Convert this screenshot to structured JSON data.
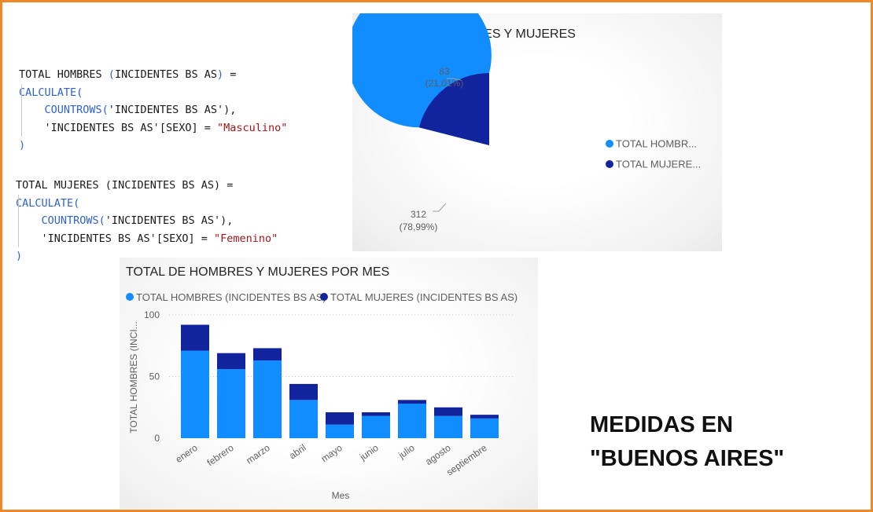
{
  "code_blocks": [
    {
      "lines": [
        [
          {
            "t": "TOTAL HOMBRES ",
            "c": ""
          },
          {
            "t": "(",
            "c": "par"
          },
          {
            "t": "INCIDENTES BS AS",
            "c": ""
          },
          {
            "t": ")",
            "c": "par"
          },
          {
            "t": " =",
            "c": ""
          }
        ],
        [
          {
            "t": "CALCULATE(",
            "c": "fn"
          }
        ],
        [
          {
            "t": "    ",
            "c": ""
          },
          {
            "t": "COUNTROWS(",
            "c": "fn"
          },
          {
            "t": "'INCIDENTES BS AS'",
            "c": ""
          },
          {
            "t": "),",
            "c": ""
          }
        ],
        [
          {
            "t": "    'INCIDENTES BS AS'",
            "c": ""
          },
          {
            "t": "[SEXO]",
            "c": ""
          },
          {
            "t": " = ",
            "c": ""
          },
          {
            "t": "\"Masculino\"",
            "c": "str"
          }
        ],
        [
          {
            "t": ")",
            "c": "fn"
          }
        ]
      ]
    },
    {
      "lines": [
        [
          {
            "t": "TOTAL MUJERES ",
            "c": ""
          },
          {
            "t": "(",
            "c": ""
          },
          {
            "t": "INCIDENTES BS AS",
            "c": ""
          },
          {
            "t": ")",
            "c": ""
          },
          {
            "t": " =",
            "c": ""
          }
        ],
        [
          {
            "t": "CALCULATE(",
            "c": "fn"
          }
        ],
        [
          {
            "t": "    ",
            "c": ""
          },
          {
            "t": "COUNTROWS(",
            "c": "fn"
          },
          {
            "t": "'INCIDENTES BS AS'",
            "c": ""
          },
          {
            "t": "),",
            "c": ""
          }
        ],
        [
          {
            "t": "    'INCIDENTES BS AS'",
            "c": ""
          },
          {
            "t": "[SEXO]",
            "c": ""
          },
          {
            "t": " = ",
            "c": ""
          },
          {
            "t": "\"Femenino\"",
            "c": "str"
          }
        ],
        [
          {
            "t": ")",
            "c": "fn"
          }
        ]
      ]
    }
  ],
  "colors": {
    "hombres": "#118dff",
    "mujeres": "#12239e",
    "frame": "#f0882a"
  },
  "chart_data": [
    {
      "type": "pie",
      "title": "TOTAL DE HOMBRES Y MUJERES",
      "slices": [
        {
          "name": "TOTAL HOMBRES (INCIDENTES BS AS)",
          "legend_label": "TOTAL HOMBR...",
          "value": 312,
          "value_label": "312",
          "pct_label": "(78,99%)"
        },
        {
          "name": "TOTAL MUJERES (INCIDENTES BS AS)",
          "legend_label": "TOTAL MUJERE...",
          "value": 83,
          "value_label": "83",
          "pct_label": "(21,01%)"
        }
      ],
      "legend_position": "right"
    },
    {
      "type": "bar",
      "stacked": true,
      "title": "TOTAL DE HOMBRES Y MUJERES POR MES",
      "categories": [
        "enero",
        "febrero",
        "marzo",
        "abril",
        "mayo",
        "junio",
        "julio",
        "agosto",
        "septiembre"
      ],
      "series": [
        {
          "name": "TOTAL HOMBRES (INCIDENTES BS AS)",
          "values": [
            71,
            56,
            63,
            31,
            11,
            18,
            28,
            18,
            16
          ]
        },
        {
          "name": "TOTAL MUJERES (INCIDENTES BS AS)",
          "values": [
            21,
            13,
            10,
            13,
            10,
            3,
            3,
            7,
            3
          ]
        }
      ],
      "xlabel": "Mes",
      "ylabel": "TOTAL HOMBRES (INCI...",
      "yticks": [
        0,
        50,
        100
      ],
      "ylim": [
        0,
        100
      ],
      "grid": true,
      "legend_position": "top-left"
    }
  ],
  "caption": {
    "line1": "MEDIDAS EN",
    "line2": "\"BUENOS AIRES\""
  }
}
